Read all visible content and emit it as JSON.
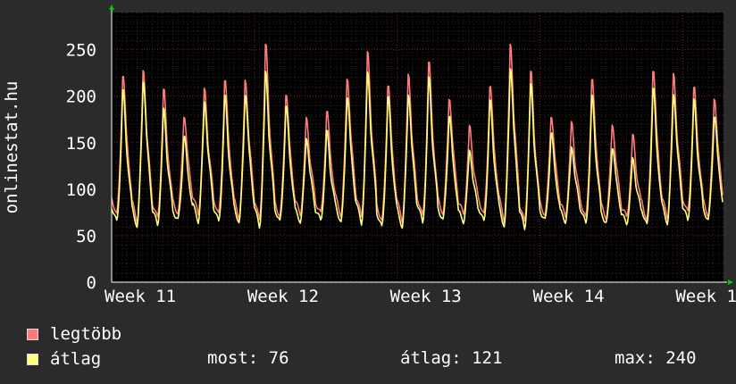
{
  "chart_data": {
    "type": "line",
    "ylabel": "onlinestat.hu",
    "ylim": [
      0,
      290
    ],
    "yticks": [
      0,
      50,
      100,
      150,
      200,
      250
    ],
    "xlim": [
      0,
      30
    ],
    "xticks": [
      {
        "label": "Week 11",
        "x": 0
      },
      {
        "label": "Week 12",
        "x": 7
      },
      {
        "label": "Week 13",
        "x": 14
      },
      {
        "label": "Week 14",
        "x": 21
      },
      {
        "label": "Week 1",
        "x": 28
      }
    ],
    "x_unit": "days",
    "grid": true,
    "series": [
      {
        "name": "legtöbb",
        "color": "#ff7b7b",
        "daily_peak": [
          230,
          235,
          212,
          185,
          212,
          224,
          225,
          262,
          210,
          180,
          188,
          227,
          253,
          220,
          230,
          243,
          205,
          170,
          218,
          265,
          232,
          185,
          175,
          225,
          175,
          160,
          237,
          230,
          215,
          205
        ],
        "daily_low": [
          72,
          66,
          68,
          74,
          74,
          72,
          70,
          66,
          70,
          74,
          73,
          72,
          70,
          65,
          67,
          70,
          74,
          74,
          72,
          67,
          64,
          72,
          72,
          68,
          70,
          70,
          66,
          70,
          74,
          72
        ]
      },
      {
        "name": "átlag",
        "color": "#ffff7b",
        "daily_peak": [
          212,
          225,
          190,
          162,
          200,
          205,
          210,
          232,
          195,
          160,
          165,
          207,
          232,
          205,
          210,
          225,
          185,
          145,
          200,
          240,
          218,
          165,
          150,
          205,
          150,
          135,
          215,
          210,
          200,
          185
        ],
        "daily_low": [
          64,
          60,
          62,
          66,
          66,
          64,
          64,
          60,
          64,
          66,
          66,
          64,
          64,
          58,
          60,
          64,
          66,
          66,
          64,
          60,
          58,
          66,
          66,
          62,
          64,
          64,
          60,
          64,
          66,
          66
        ]
      }
    ]
  },
  "legend": [
    {
      "label": "legtöbb",
      "color": "#ff7b7b"
    },
    {
      "label": "átlag",
      "color": "#ffff7b"
    }
  ],
  "stats": {
    "current": "most: 76",
    "average": "átlag: 121",
    "max": "max: 240"
  }
}
